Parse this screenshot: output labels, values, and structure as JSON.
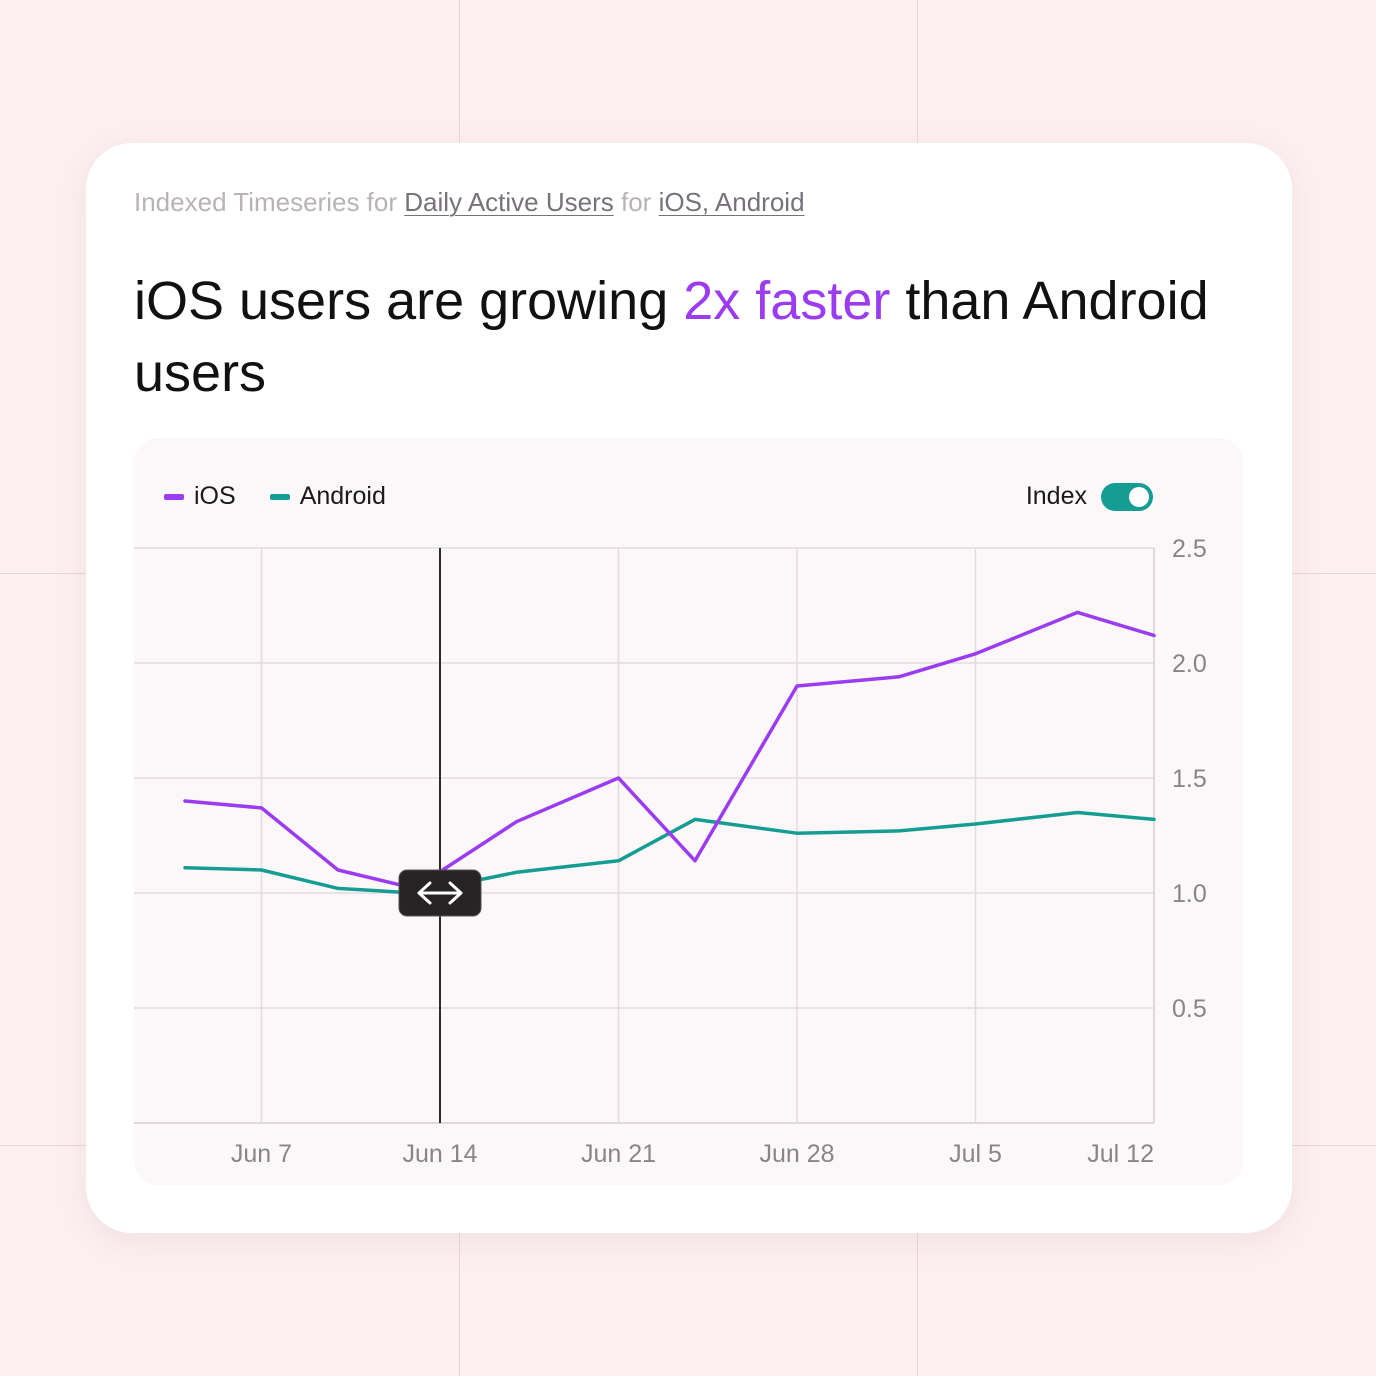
{
  "card": {
    "subtitle": {
      "prefix": "Indexed Timeseries for",
      "metric": "Daily Active Users",
      "joiner": "for",
      "segments": "iOS, Android"
    },
    "headline": {
      "before": "iOS users are growing",
      "accent": "2x faster",
      "after": "than Android users"
    }
  },
  "controls": {
    "index_label": "Index",
    "index_on": true
  },
  "colors": {
    "ios": "#9b3cf0",
    "android": "#159d94",
    "accent": "#9b3cf0"
  },
  "hover_handle_icon": "left-right-arrow-icon",
  "chart_data": {
    "type": "line",
    "x": [
      "Jun 4",
      "Jun 7",
      "Jun 10",
      "Jun 13",
      "Jun 17",
      "Jun 21",
      "Jun 24",
      "Jun 28",
      "Jul 2",
      "Jul 5",
      "Jul 9",
      "Jul 12"
    ],
    "x_ticks": [
      "Jun 7",
      "Jun 14",
      "Jun 21",
      "Jun 28",
      "Jul 5",
      "Jul 12"
    ],
    "y_ticks": [
      "2.5",
      "2.0",
      "1.5",
      "1.0",
      "0.5"
    ],
    "ylim": [
      0,
      2.5
    ],
    "grid": true,
    "legend": "top-left",
    "hover_x": "Jun 14",
    "series": [
      {
        "name": "iOS",
        "values": [
          1.4,
          1.37,
          1.1,
          1.02,
          1.31,
          1.5,
          1.14,
          1.9,
          1.94,
          2.04,
          2.22,
          2.12
        ]
      },
      {
        "name": "Android",
        "values": [
          1.11,
          1.1,
          1.02,
          1.0,
          1.09,
          1.14,
          1.32,
          1.26,
          1.27,
          1.3,
          1.35,
          1.32
        ]
      }
    ]
  }
}
